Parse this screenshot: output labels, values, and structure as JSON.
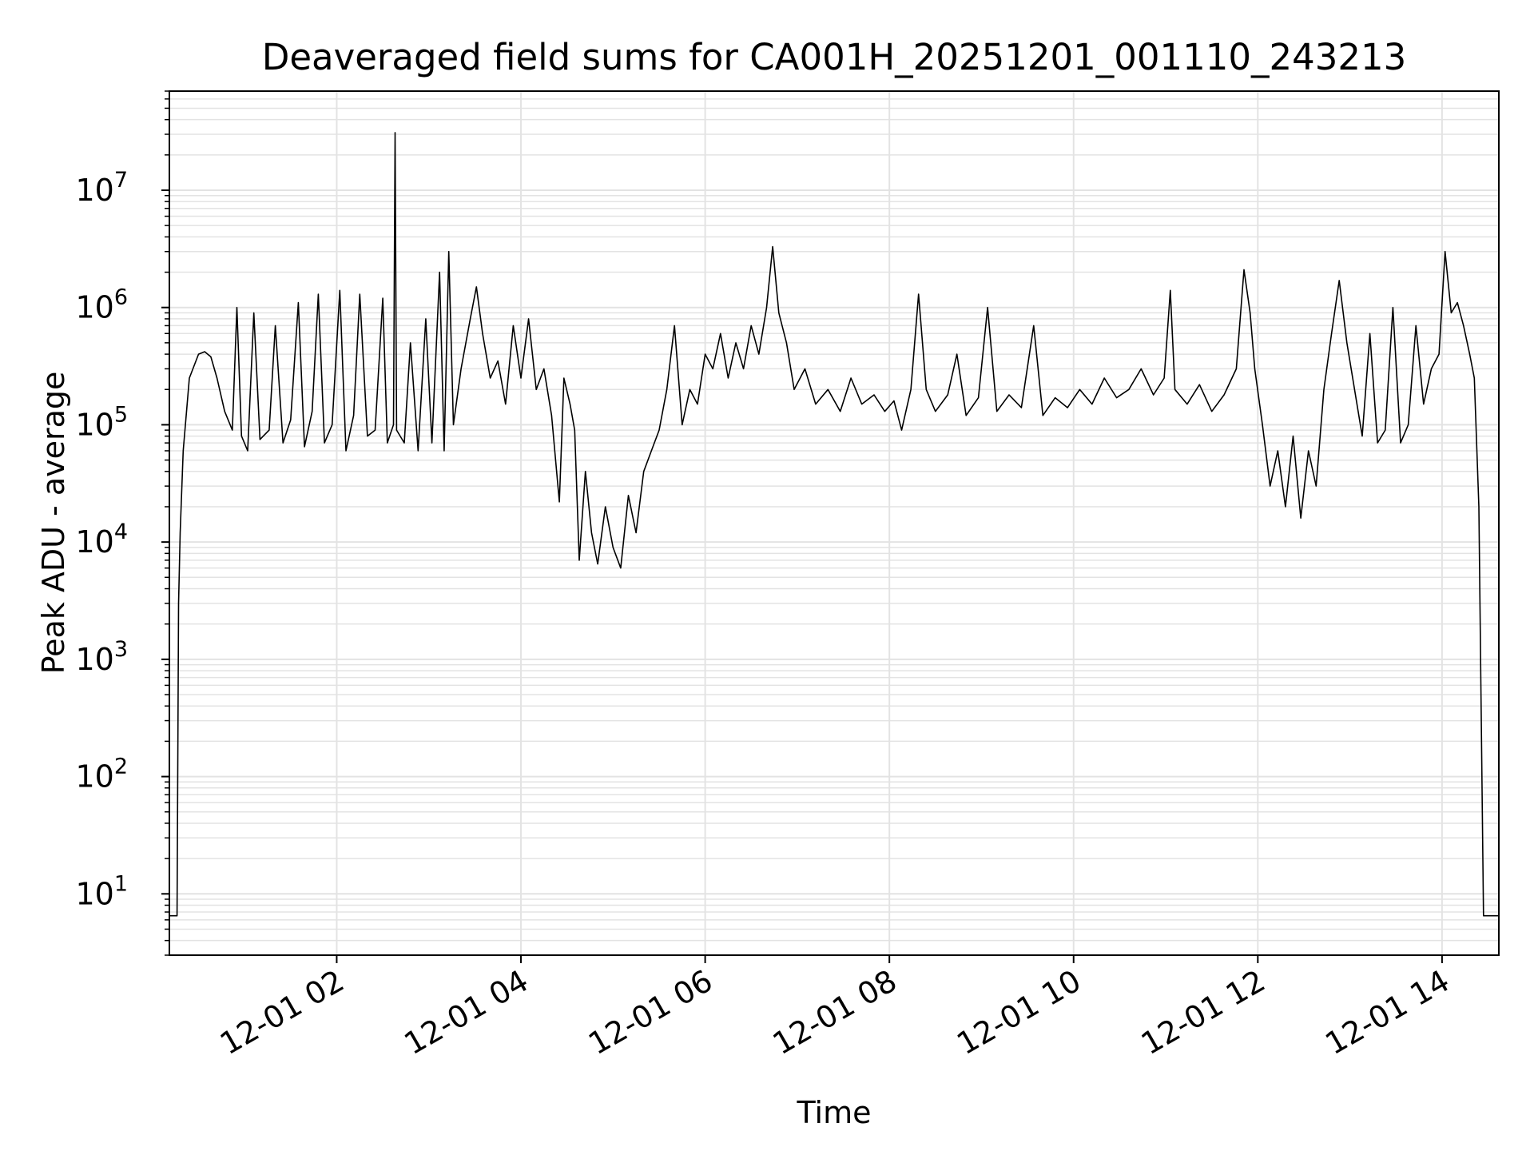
{
  "chart_data": {
    "type": "line",
    "title": "Deaveraged field sums for CA001H_20251201_001110_243213",
    "xlabel": "Time",
    "ylabel": "Peak ADU - average",
    "x_scale": "time",
    "y_scale": "log",
    "xlim": [
      "12-01 00:11",
      "12-01 14:37"
    ],
    "ylim": [
      3,
      70000000
    ],
    "grid": true,
    "line_color": "#000000",
    "grid_color": "#e3e3e3",
    "x_ticks": [
      {
        "t": "12-01 02:00",
        "label": "12-01 02"
      },
      {
        "t": "12-01 04:00",
        "label": "12-01 04"
      },
      {
        "t": "12-01 06:00",
        "label": "12-01 06"
      },
      {
        "t": "12-01 08:00",
        "label": "12-01 08"
      },
      {
        "t": "12-01 10:00",
        "label": "12-01 10"
      },
      {
        "t": "12-01 12:00",
        "label": "12-01 12"
      },
      {
        "t": "12-01 14:00",
        "label": "12-01 14"
      }
    ],
    "y_ticks": [
      {
        "value": 10,
        "base": "10",
        "exp": "1"
      },
      {
        "value": 100,
        "base": "10",
        "exp": "2"
      },
      {
        "value": 1000,
        "base": "10",
        "exp": "3"
      },
      {
        "value": 10000,
        "base": "10",
        "exp": "4"
      },
      {
        "value": 100000,
        "base": "10",
        "exp": "5"
      },
      {
        "value": 1000000,
        "base": "10",
        "exp": "6"
      },
      {
        "value": 10000000,
        "base": "10",
        "exp": "7"
      }
    ],
    "series": [
      {
        "points": [
          [
            "12-01 00:11",
            6.5
          ],
          [
            "12-01 00:16",
            6.5
          ],
          [
            "12-01 00:17",
            3000
          ],
          [
            "12-01 00:18",
            12000
          ],
          [
            "12-01 00:20",
            60000
          ],
          [
            "12-01 00:24",
            250000
          ],
          [
            "12-01 00:30",
            400000
          ],
          [
            "12-01 00:34",
            420000
          ],
          [
            "12-01 00:38",
            380000
          ],
          [
            "12-01 00:42",
            250000
          ],
          [
            "12-01 00:47",
            130000
          ],
          [
            "12-01 00:52",
            90000
          ],
          [
            "12-01 00:55",
            1000000
          ],
          [
            "12-01 00:58",
            80000
          ],
          [
            "12-01 01:02",
            60000
          ],
          [
            "12-01 01:06",
            900000
          ],
          [
            "12-01 01:10",
            75000
          ],
          [
            "12-01 01:16",
            90000
          ],
          [
            "12-01 01:20",
            700000
          ],
          [
            "12-01 01:25",
            70000
          ],
          [
            "12-01 01:30",
            110000
          ],
          [
            "12-01 01:35",
            1100000
          ],
          [
            "12-01 01:39",
            65000
          ],
          [
            "12-01 01:44",
            130000
          ],
          [
            "12-01 01:48",
            1300000
          ],
          [
            "12-01 01:52",
            70000
          ],
          [
            "12-01 01:57",
            100000
          ],
          [
            "12-01 02:02",
            1400000
          ],
          [
            "12-01 02:06",
            60000
          ],
          [
            "12-01 02:11",
            120000
          ],
          [
            "12-01 02:15",
            1300000
          ],
          [
            "12-01 02:20",
            80000
          ],
          [
            "12-01 02:25",
            90000
          ],
          [
            "12-01 02:30",
            1200000
          ],
          [
            "12-01 02:33",
            70000
          ],
          [
            "12-01 02:37",
            100000
          ],
          [
            "12-01 02:38",
            31000000
          ],
          [
            "12-01 02:39",
            90000
          ],
          [
            "12-01 02:44",
            70000
          ],
          [
            "12-01 02:48",
            500000
          ],
          [
            "12-01 02:53",
            60000
          ],
          [
            "12-01 02:58",
            800000
          ],
          [
            "12-01 03:02",
            70000
          ],
          [
            "12-01 03:07",
            2000000
          ],
          [
            "12-01 03:10",
            60000
          ],
          [
            "12-01 03:13",
            3000000
          ],
          [
            "12-01 03:16",
            100000
          ],
          [
            "12-01 03:21",
            300000
          ],
          [
            "12-01 03:27",
            800000
          ],
          [
            "12-01 03:31",
            1500000
          ],
          [
            "12-01 03:35",
            600000
          ],
          [
            "12-01 03:40",
            250000
          ],
          [
            "12-01 03:45",
            350000
          ],
          [
            "12-01 03:50",
            150000
          ],
          [
            "12-01 03:55",
            700000
          ],
          [
            "12-01 04:00",
            250000
          ],
          [
            "12-01 04:05",
            800000
          ],
          [
            "12-01 04:10",
            200000
          ],
          [
            "12-01 04:15",
            300000
          ],
          [
            "12-01 04:20",
            120000
          ],
          [
            "12-01 04:25",
            22000
          ],
          [
            "12-01 04:28",
            250000
          ],
          [
            "12-01 04:32",
            150000
          ],
          [
            "12-01 04:35",
            90000
          ],
          [
            "12-01 04:38",
            7000
          ],
          [
            "12-01 04:42",
            40000
          ],
          [
            "12-01 04:46",
            12000
          ],
          [
            "12-01 04:50",
            6500
          ],
          [
            "12-01 04:55",
            20000
          ],
          [
            "12-01 05:00",
            9000
          ],
          [
            "12-01 05:05",
            6000
          ],
          [
            "12-01 05:10",
            25000
          ],
          [
            "12-01 05:15",
            12000
          ],
          [
            "12-01 05:20",
            40000
          ],
          [
            "12-01 05:25",
            60000
          ],
          [
            "12-01 05:30",
            90000
          ],
          [
            "12-01 05:35",
            200000
          ],
          [
            "12-01 05:40",
            700000
          ],
          [
            "12-01 05:45",
            100000
          ],
          [
            "12-01 05:50",
            200000
          ],
          [
            "12-01 05:55",
            150000
          ],
          [
            "12-01 06:00",
            400000
          ],
          [
            "12-01 06:05",
            300000
          ],
          [
            "12-01 06:10",
            600000
          ],
          [
            "12-01 06:15",
            250000
          ],
          [
            "12-01 06:20",
            500000
          ],
          [
            "12-01 06:25",
            300000
          ],
          [
            "12-01 06:30",
            700000
          ],
          [
            "12-01 06:35",
            400000
          ],
          [
            "12-01 06:40",
            1000000
          ],
          [
            "12-01 06:44",
            3300000
          ],
          [
            "12-01 06:48",
            900000
          ],
          [
            "12-01 06:53",
            500000
          ],
          [
            "12-01 06:58",
            200000
          ],
          [
            "12-01 07:05",
            300000
          ],
          [
            "12-01 07:12",
            150000
          ],
          [
            "12-01 07:20",
            200000
          ],
          [
            "12-01 07:28",
            130000
          ],
          [
            "12-01 07:35",
            250000
          ],
          [
            "12-01 07:42",
            150000
          ],
          [
            "12-01 07:50",
            180000
          ],
          [
            "12-01 07:57",
            130000
          ],
          [
            "12-01 08:03",
            160000
          ],
          [
            "12-01 08:08",
            90000
          ],
          [
            "12-01 08:14",
            200000
          ],
          [
            "12-01 08:19",
            1300000
          ],
          [
            "12-01 08:24",
            200000
          ],
          [
            "12-01 08:30",
            130000
          ],
          [
            "12-01 08:38",
            180000
          ],
          [
            "12-01 08:44",
            400000
          ],
          [
            "12-01 08:50",
            120000
          ],
          [
            "12-01 08:58",
            170000
          ],
          [
            "12-01 09:04",
            1000000
          ],
          [
            "12-01 09:10",
            130000
          ],
          [
            "12-01 09:18",
            180000
          ],
          [
            "12-01 09:26",
            140000
          ],
          [
            "12-01 09:34",
            700000
          ],
          [
            "12-01 09:40",
            120000
          ],
          [
            "12-01 09:48",
            170000
          ],
          [
            "12-01 09:56",
            140000
          ],
          [
            "12-01 10:04",
            200000
          ],
          [
            "12-01 10:12",
            150000
          ],
          [
            "12-01 10:20",
            250000
          ],
          [
            "12-01 10:28",
            170000
          ],
          [
            "12-01 10:36",
            200000
          ],
          [
            "12-01 10:44",
            300000
          ],
          [
            "12-01 10:52",
            180000
          ],
          [
            "12-01 10:59",
            250000
          ],
          [
            "12-01 11:03",
            1400000
          ],
          [
            "12-01 11:06",
            200000
          ],
          [
            "12-01 11:14",
            150000
          ],
          [
            "12-01 11:22",
            220000
          ],
          [
            "12-01 11:30",
            130000
          ],
          [
            "12-01 11:38",
            180000
          ],
          [
            "12-01 11:46",
            300000
          ],
          [
            "12-01 11:51",
            2100000
          ],
          [
            "12-01 11:55",
            900000
          ],
          [
            "12-01 11:58",
            300000
          ],
          [
            "12-01 12:03",
            100000
          ],
          [
            "12-01 12:08",
            30000
          ],
          [
            "12-01 12:13",
            60000
          ],
          [
            "12-01 12:18",
            20000
          ],
          [
            "12-01 12:23",
            80000
          ],
          [
            "12-01 12:28",
            16000
          ],
          [
            "12-01 12:33",
            60000
          ],
          [
            "12-01 12:38",
            30000
          ],
          [
            "12-01 12:43",
            200000
          ],
          [
            "12-01 12:48",
            600000
          ],
          [
            "12-01 12:53",
            1700000
          ],
          [
            "12-01 12:58",
            500000
          ],
          [
            "12-01 13:03",
            200000
          ],
          [
            "12-01 13:08",
            80000
          ],
          [
            "12-01 13:13",
            600000
          ],
          [
            "12-01 13:18",
            70000
          ],
          [
            "12-01 13:23",
            90000
          ],
          [
            "12-01 13:28",
            1000000
          ],
          [
            "12-01 13:33",
            70000
          ],
          [
            "12-01 13:38",
            100000
          ],
          [
            "12-01 13:43",
            700000
          ],
          [
            "12-01 13:48",
            150000
          ],
          [
            "12-01 13:53",
            300000
          ],
          [
            "12-01 13:58",
            400000
          ],
          [
            "12-01 14:02",
            3000000
          ],
          [
            "12-01 14:06",
            900000
          ],
          [
            "12-01 14:10",
            1100000
          ],
          [
            "12-01 14:14",
            700000
          ],
          [
            "12-01 14:18",
            400000
          ],
          [
            "12-01 14:21",
            250000
          ],
          [
            "12-01 14:24",
            20000
          ],
          [
            "12-01 14:27",
            6.5
          ],
          [
            "12-01 14:37",
            6.5
          ]
        ]
      }
    ]
  }
}
